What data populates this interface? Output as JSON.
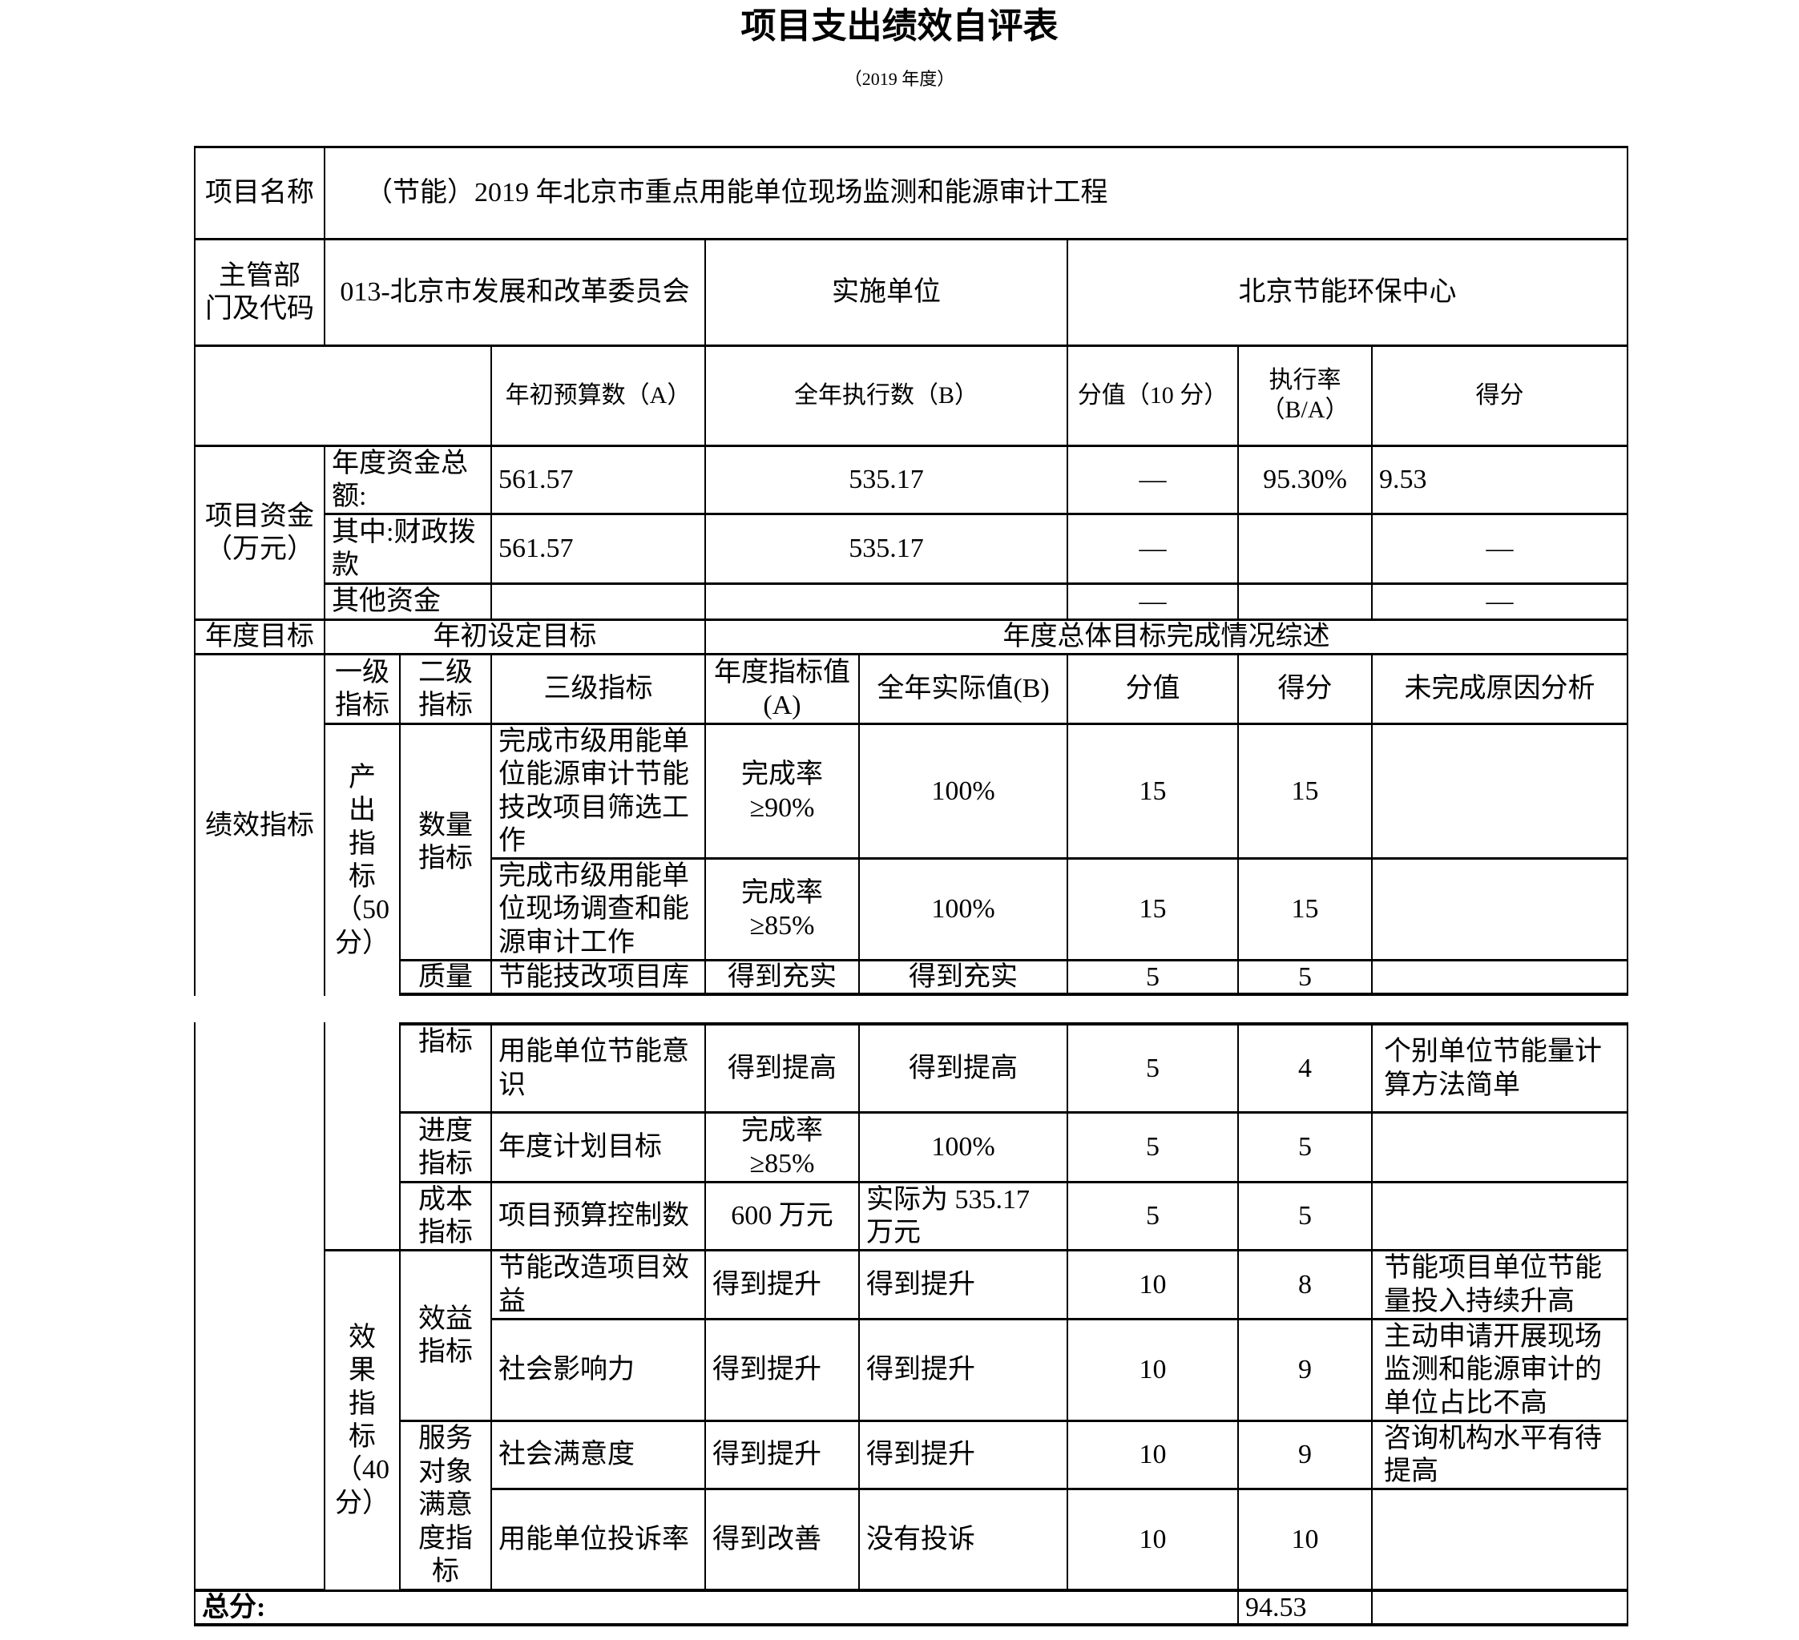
{
  "title": "项目支出绩效自评表",
  "subtitle": "（2019 年度）",
  "basic": {
    "project_label": "项目名称",
    "project_name": "（节能）2019 年北京市重点用能单位现场监测和能源审计工程",
    "dept_label": "主管部\n门及代码",
    "dept_value": "013-北京市发展和改革委员会",
    "impl_label": "实施单位",
    "impl_value": "北京节能环保中心"
  },
  "funds": {
    "section_label": "项目资金（万元）",
    "col_budget": "年初预算数（A）",
    "col_exec": "全年执行数（B）",
    "col_weight": "分值（10 分）",
    "col_rate": "执行率（B/A）",
    "col_score": "得分",
    "rows": [
      {
        "label": "年度资金总额:",
        "budget": "561.57",
        "exec": "535.17",
        "weight": "—",
        "rate": "95.30%",
        "score": "9.53"
      },
      {
        "label": "其中:财政拨款",
        "budget": "561.57",
        "exec": "535.17",
        "weight": "—",
        "rate": "",
        "score": "—"
      },
      {
        "label": "其他资金",
        "budget": "",
        "exec": "",
        "weight": "—",
        "rate": "",
        "score": "—"
      }
    ]
  },
  "goal": {
    "label": "年度目标",
    "initial": "年初设定目标",
    "summary": "年度总体目标完成情况综述"
  },
  "perf": {
    "section_label": "绩效指标",
    "col_l1": "一级指标",
    "col_l2": "二级指标",
    "col_l3": "三级指标",
    "col_target": "年度指标值 (A)",
    "col_actual": "全年实际值(B)",
    "col_weight": "分值",
    "col_score": "得分",
    "col_reason": "未完成原因分析",
    "group_output": "产\n出\n指\n标\n（50\n分）",
    "group_effect": "效\n果\n指\n标\n（40\n分）",
    "l2_quantity": "数量指标",
    "l2_quality_part1": "质量",
    "l2_quality_part2": "指标",
    "l2_progress": "进度指标",
    "l2_cost": "成本指标",
    "l2_benefit": "效益指标",
    "l2_satisfaction": "服务对象满意度指标",
    "rows": [
      {
        "name": "完成市级用能单位能源审计节能技改项目筛选工作",
        "target": "完成率≥90%",
        "actual": "100%",
        "weight": "15",
        "score": "15",
        "reason": ""
      },
      {
        "name": "完成市级用能单位现场调查和能源审计工作",
        "target": "完成率≥85%",
        "actual": "100%",
        "weight": "15",
        "score": "15",
        "reason": ""
      },
      {
        "name": "节能技改项目库",
        "target": "得到充实",
        "actual": "得到充实",
        "weight": "5",
        "score": "5",
        "reason": ""
      },
      {
        "name": "用能单位节能意识",
        "target": "得到提高",
        "actual": "得到提高",
        "weight": "5",
        "score": "4",
        "reason": "个别单位节能量计算方法简单"
      },
      {
        "name": "年度计划目标",
        "target": "完成率≥85%",
        "actual": "100%",
        "weight": "5",
        "score": "5",
        "reason": ""
      },
      {
        "name": "项目预算控制数",
        "target": "600 万元",
        "actual": "实际为 535.17 万元",
        "weight": "5",
        "score": "5",
        "reason": ""
      },
      {
        "name": "节能改造项目效益",
        "target": "得到提升",
        "actual": "得到提升",
        "weight": "10",
        "score": "8",
        "reason": "节能项目单位节能量投入持续升高"
      },
      {
        "name": "社会影响力",
        "target": "得到提升",
        "actual": "得到提升",
        "weight": "10",
        "score": "9",
        "reason": "主动申请开展现场监测和能源审计的单位占比不高"
      },
      {
        "name": "社会满意度",
        "target": "得到提升",
        "actual": "得到提升",
        "weight": "10",
        "score": "9",
        "reason": "咨询机构水平有待提高"
      },
      {
        "name": "用能单位投诉率",
        "target": "得到改善",
        "actual": "没有投诉",
        "weight": "10",
        "score": "10",
        "reason": ""
      }
    ]
  },
  "total": {
    "label": "总分:",
    "value": "94.53"
  }
}
